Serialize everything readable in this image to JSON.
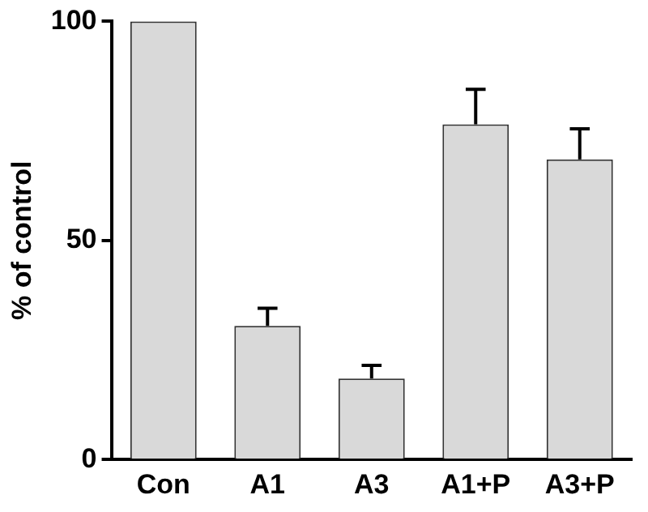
{
  "chart_data": {
    "type": "bar",
    "ylabel": "% of control",
    "categories": [
      "Con",
      "A1",
      "A3",
      "A1+P",
      "A3+P"
    ],
    "values": [
      100,
      30.5,
      18.5,
      76.5,
      68.5
    ],
    "errors": [
      null,
      [
        30.5,
        34.5
      ],
      [
        18.5,
        21.5
      ],
      [
        76.5,
        84.5
      ],
      [
        68.5,
        75.5
      ]
    ],
    "color": "#d9d9d9",
    "ylim": [
      0,
      100
    ],
    "yticks": [
      0,
      50,
      100
    ],
    "grid": false,
    "legend": false
  }
}
